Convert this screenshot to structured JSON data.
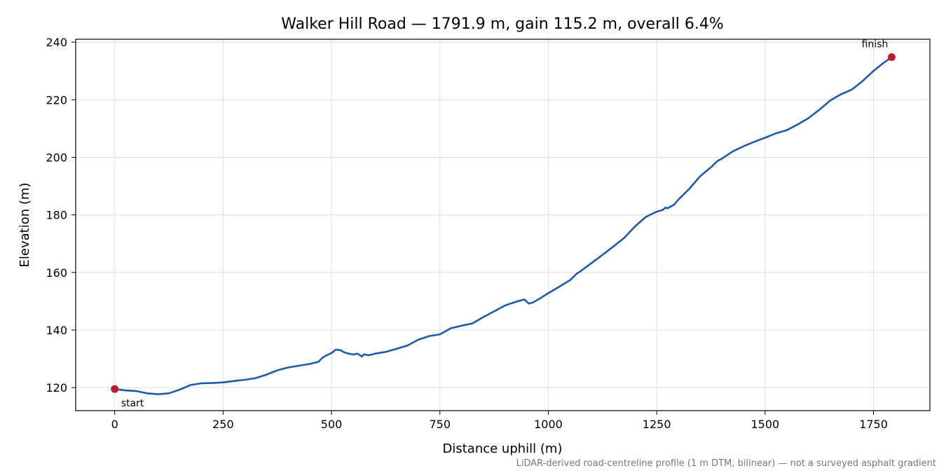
{
  "chart_data": {
    "type": "line",
    "title": "Walker Hill Road — 1791.9 m, gain 115.2 m, overall 6.4%",
    "xlabel": "Distance uphill (m)",
    "ylabel": "Elevation (m)",
    "footnote": "LiDAR-derived road-centreline profile (1 m DTM, bilinear) — not a surveyed asphalt gradient",
    "xlim": [
      -90,
      1880
    ],
    "ylim": [
      112,
      241
    ],
    "xticks": [
      0,
      250,
      500,
      750,
      1000,
      1250,
      1500,
      1750
    ],
    "yticks": [
      120,
      140,
      160,
      180,
      200,
      220,
      240
    ],
    "grid": true,
    "line_color": "#1f5aa6",
    "marker_color": "#b5202c",
    "series": [
      {
        "x": [
          0,
          25,
          50,
          75,
          100,
          125,
          150,
          175,
          200,
          225,
          250,
          275,
          300,
          325,
          350,
          375,
          400,
          425,
          450,
          470,
          480,
          490,
          500,
          510,
          520,
          530,
          540,
          550,
          560,
          570,
          575,
          585,
          600,
          625,
          650,
          675,
          700,
          725,
          750,
          775,
          800,
          825,
          850,
          875,
          900,
          925,
          945,
          955,
          965,
          980,
          1000,
          1025,
          1050,
          1065,
          1075,
          1100,
          1125,
          1150,
          1175,
          1200,
          1225,
          1250,
          1265,
          1270,
          1275,
          1290,
          1300,
          1325,
          1350,
          1375,
          1390,
          1400,
          1425,
          1450,
          1475,
          1500,
          1525,
          1550,
          1575,
          1600,
          1625,
          1650,
          1675,
          1700,
          1725,
          1750,
          1775,
          1791.9
        ],
        "y": [
          119.5,
          119.0,
          118.8,
          118.0,
          117.7,
          118.0,
          119.3,
          120.9,
          121.5,
          121.6,
          121.8,
          122.3,
          122.7,
          123.3,
          124.5,
          126.0,
          127.0,
          127.6,
          128.2,
          129.0,
          130.5,
          131.3,
          132.0,
          133.2,
          133.0,
          132.2,
          131.8,
          131.5,
          131.8,
          130.8,
          131.6,
          131.2,
          131.8,
          132.4,
          133.5,
          134.6,
          136.6,
          137.9,
          138.5,
          140.6,
          141.5,
          142.3,
          144.5,
          146.5,
          148.5,
          149.8,
          150.6,
          149.2,
          149.6,
          150.9,
          152.8,
          155.0,
          157.3,
          159.5,
          160.5,
          163.3,
          166.1,
          169.0,
          172.0,
          176.0,
          179.3,
          181.1,
          181.8,
          182.5,
          182.3,
          183.5,
          185.3,
          189.0,
          193.4,
          196.5,
          198.7,
          199.5,
          202.0,
          203.8,
          205.4,
          206.8,
          208.3,
          209.4,
          211.4,
          213.6,
          216.5,
          219.7,
          221.9,
          223.5,
          226.5,
          230.0,
          233.0,
          234.8
        ]
      }
    ],
    "annotations": [
      {
        "label": "start",
        "x": 0,
        "y": 119.5
      },
      {
        "label": "finish",
        "x": 1791.9,
        "y": 234.8
      }
    ]
  }
}
